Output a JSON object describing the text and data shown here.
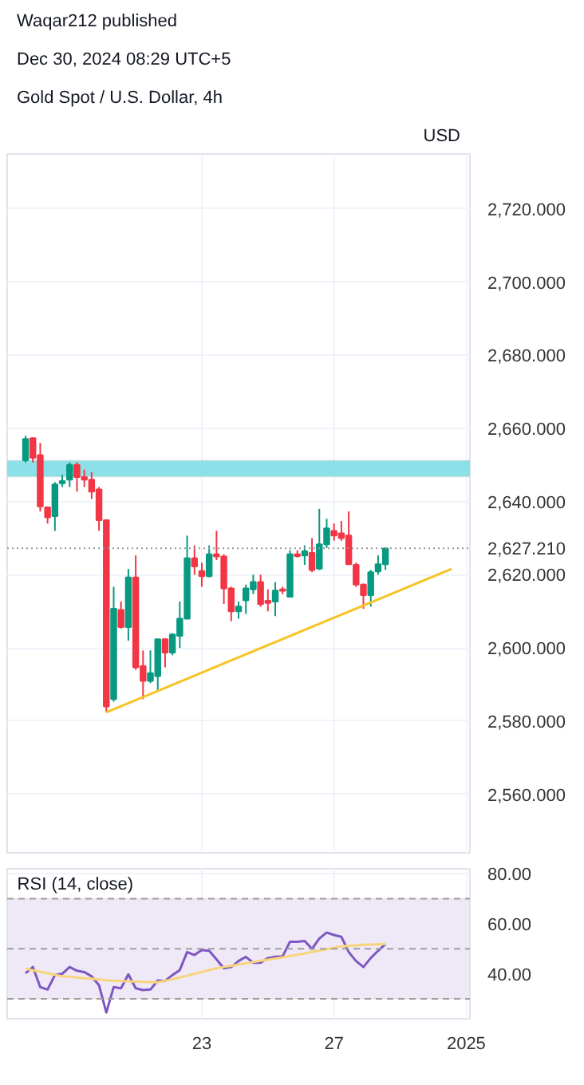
{
  "chart_data": [
    {
      "type": "candlestick",
      "title": "Gold Spot / U.S. Dollar, 4h",
      "ylabel": "USD",
      "annotations": [
        "Waqar212 published",
        "Dec 30, 2024 08:29 UTC+5"
      ],
      "categories": [
        null,
        null,
        null,
        null,
        null,
        null,
        null,
        null,
        null,
        null,
        null,
        null,
        null,
        null,
        null,
        null,
        null,
        null,
        null,
        null,
        null,
        null,
        null,
        null,
        null,
        null,
        "23",
        null,
        null,
        null,
        null,
        null,
        null,
        null,
        null,
        null,
        null,
        null,
        null,
        null,
        null,
        null,
        null,
        null,
        "27",
        null,
        null,
        null,
        null,
        null,
        null,
        null,
        null,
        null,
        null,
        null,
        null,
        null,
        null,
        null,
        null,
        null,
        "2025"
      ],
      "ohlc": [
        null,
        null,
        [
          2651.3,
          2658,
          2650.7,
          2657.1
        ],
        [
          2657.3,
          2657.6,
          2650.7,
          2652
        ],
        [
          2652.7,
          2656,
          2637.3,
          2638.7
        ],
        [
          2638.4,
          2638.7,
          2634,
          2635.7
        ],
        [
          2636,
          2645.3,
          2632,
          2644.7
        ],
        [
          2645,
          2647.3,
          2644,
          2645.6
        ],
        [
          2646,
          2650.7,
          2644,
          2650
        ],
        [
          2650,
          2650.7,
          2642.7,
          2646.7
        ],
        [
          2646.7,
          2648.7,
          2644,
          2646
        ],
        [
          2646,
          2648,
          2640.7,
          2642.7
        ],
        [
          2643.3,
          2644,
          2632,
          2634.9
        ],
        [
          2634.9,
          2635,
          2582.4,
          2584
        ],
        [
          2586,
          2616.7,
          2585.3,
          2610.7
        ],
        [
          2610.4,
          2612.7,
          2605.3,
          2605.7
        ],
        [
          2605.7,
          2621.6,
          2602,
          2619.3
        ],
        [
          2619.3,
          2625.3,
          2594,
          2594.7
        ],
        [
          2595,
          2599.3,
          2586,
          2591
        ],
        [
          2591,
          2599.3,
          2590.4,
          2593.1
        ],
        [
          2592.3,
          2602.4,
          2588.3,
          2602.4
        ],
        [
          2602.4,
          2602.7,
          2594.7,
          2598.7
        ],
        [
          2598.7,
          2604,
          2598,
          2603.7
        ],
        [
          2603.3,
          2612.7,
          2600,
          2608
        ],
        [
          2608,
          2630.7,
          2608,
          2624.5
        ],
        [
          2624.5,
          2628,
          2620,
          2622.3
        ],
        [
          2621,
          2623.3,
          2616.7,
          2619.6
        ],
        [
          2619.6,
          2628,
          2619.3,
          2625.6
        ],
        [
          2625.6,
          2632,
          2624,
          2625
        ],
        [
          2625,
          2625.6,
          2612,
          2616.3
        ],
        [
          2616.3,
          2616.7,
          2607.3,
          2610
        ],
        [
          2610,
          2612.7,
          2608,
          2611.3
        ],
        [
          2613,
          2617.3,
          2609.3,
          2616.3
        ],
        [
          2616,
          2620,
          2614.7,
          2618
        ],
        [
          2618,
          2620,
          2611.3,
          2612
        ],
        [
          2612.9,
          2616,
          2610,
          2612.3
        ],
        [
          2612.7,
          2618,
          2608.7,
          2615.7
        ],
        [
          2616,
          2616.7,
          2614.7,
          2615.6
        ],
        [
          2614,
          2626.7,
          2614,
          2625.6
        ],
        [
          2625.6,
          2626.7,
          2624.7,
          2625.1
        ],
        [
          2625.3,
          2628,
          2622.7,
          2626.4
        ],
        [
          2626,
          2630,
          2620.7,
          2621.3
        ],
        [
          2621.7,
          2638,
          2621.3,
          2628.3
        ],
        [
          2628.3,
          2635.3,
          2627.3,
          2632.7
        ],
        [
          2632,
          2634,
          2629.3,
          2630.7
        ],
        [
          2631.3,
          2634.7,
          2629.3,
          2630
        ],
        [
          2630.7,
          2637.3,
          2622.7,
          2622.9
        ],
        [
          2622.7,
          2623.3,
          2616.7,
          2617.3
        ],
        [
          2617.3,
          2617.6,
          2610.7,
          2614.4
        ],
        [
          2614.4,
          2621.3,
          2611.3,
          2620.7
        ],
        [
          2620.9,
          2625.3,
          2620,
          2622.9
        ],
        [
          2622.9,
          2627.5,
          2621.3,
          2627.2
        ],
        null,
        null,
        null,
        null,
        null,
        null,
        null,
        null,
        null,
        null,
        null
      ],
      "colors": [
        null,
        null,
        "#089981",
        "#f23645",
        "#f23645",
        "#f23645",
        "#089981",
        "#089981",
        "#089981",
        "#f23645",
        "#f23645",
        "#f23645",
        "#f23645",
        "#f23645",
        "#089981",
        "#f23645",
        "#089981",
        "#f23645",
        "#f23645",
        "#089981",
        "#089981",
        "#f23645",
        "#089981",
        "#089981",
        "#089981",
        "#f23645",
        "#f23645",
        "#089981",
        "#f23645",
        "#f23645",
        "#f23645",
        "#089981",
        "#089981",
        "#089981",
        "#f23645",
        "#f23645",
        "#089981",
        "#f23645",
        "#089981",
        "#f23645",
        "#089981",
        "#f23645",
        "#089981",
        "#089981",
        "#f23645",
        "#f23645",
        "#f23645",
        "#f23645",
        "#f23645",
        "#089981",
        "#089981",
        "#089981",
        null,
        null,
        null,
        null,
        null,
        null,
        null,
        null,
        null,
        null,
        null
      ],
      "series": [
        {
          "type": "line",
          "color": "#f7c325",
          "values": [
            null,
            null,
            null,
            null,
            null,
            null,
            null,
            null,
            null,
            null,
            null,
            null,
            null,
            2582.4,
            null,
            null,
            null,
            null,
            null,
            null,
            null,
            null,
            null,
            null,
            null,
            null,
            null,
            null,
            null,
            null,
            null,
            null,
            null,
            null,
            null,
            null,
            null,
            null,
            null,
            null,
            null,
            null,
            null,
            null,
            null,
            null,
            null,
            null,
            null,
            null,
            null,
            null,
            null,
            null,
            null,
            null,
            null,
            null,
            null,
            null,
            2621.6,
            null,
            null
          ]
        }
      ],
      "bands": [
        {
          "axis": "y",
          "from": 2646.8,
          "to": 2651.2,
          "color": "#7fdde4"
        }
      ],
      "ref_lines": [
        {
          "axis": "y",
          "value": 2627.21,
          "label": "2,627.210",
          "color": "#9598a1",
          "line_style": "dotted"
        }
      ],
      "ylim": [
        2544,
        2735
      ],
      "yticks": [
        {
          "value": 2560,
          "label": "2,560.000"
        },
        {
          "value": 2580,
          "label": "2,580.000"
        },
        {
          "value": 2600,
          "label": "2,600.000"
        },
        {
          "value": 2620,
          "label": "2,620.000"
        },
        {
          "value": 2640,
          "label": "2,640.000"
        },
        {
          "value": 2660,
          "label": "2,660.000"
        },
        {
          "value": 2680,
          "label": "2,680.000"
        },
        {
          "value": 2700,
          "label": "2,700.000"
        },
        {
          "value": 2720,
          "label": "2,720.000"
        }
      ],
      "grid": true,
      "tick_labels": "y"
    },
    {
      "type": "line",
      "title": "RSI (14, close)",
      "categories": [
        null,
        null,
        null,
        null,
        null,
        null,
        null,
        null,
        null,
        null,
        null,
        null,
        null,
        null,
        null,
        null,
        null,
        null,
        null,
        null,
        null,
        null,
        null,
        null,
        null,
        null,
        "23",
        null,
        null,
        null,
        null,
        null,
        null,
        null,
        null,
        null,
        null,
        null,
        null,
        null,
        null,
        null,
        null,
        null,
        "27",
        null,
        null,
        null,
        null,
        null,
        null,
        null,
        null,
        null,
        null,
        null,
        null,
        null,
        null,
        null,
        null,
        null,
        "2025"
      ],
      "series": [
        {
          "color": "#7e57c2",
          "values": [
            null,
            null,
            40.2,
            42.7,
            34.7,
            33.7,
            39.5,
            40,
            42.7,
            41.2,
            40.7,
            39,
            35.4,
            24.5,
            34.7,
            34.2,
            39.8,
            34.2,
            33.5,
            33.7,
            37.3,
            37.1,
            39.5,
            41.5,
            48.7,
            47.5,
            49.5,
            49.2,
            45.8,
            42.2,
            42.7,
            45.1,
            46.8,
            44.4,
            44.4,
            46.3,
            46.8,
            47,
            52.8,
            52.8,
            53.1,
            50,
            54.1,
            56.5,
            55.5,
            54.8,
            48.7,
            45.1,
            42.7,
            46.3,
            49.2,
            51.9,
            null,
            null,
            null,
            null,
            null,
            null,
            null,
            null,
            null,
            null,
            null
          ]
        },
        {
          "color": "#f7d57a",
          "values": [
            null,
            null,
            42,
            41.4,
            40.8,
            40.2,
            39.6,
            39,
            38.8,
            38.5,
            38.2,
            38,
            37.7,
            37.4,
            37.2,
            37.1,
            37,
            36.9,
            36.8,
            36.7,
            36.6,
            37.2,
            37.8,
            38.5,
            39.2,
            40,
            40.7,
            41.5,
            42.2,
            42.7,
            43.2,
            43.7,
            44.2,
            44.7,
            45.2,
            45.6,
            46.1,
            46.6,
            47.1,
            47.6,
            48.1,
            48.7,
            49.3,
            49.8,
            50.4,
            51,
            51.2,
            51.4,
            51.6,
            51.7,
            51.8,
            51.9,
            null,
            null,
            null,
            null,
            null,
            null,
            null,
            null,
            null,
            null,
            null
          ]
        }
      ],
      "bands": [
        {
          "axis": "y",
          "from": 30,
          "to": 70,
          "color": "#ede7f6"
        }
      ],
      "ref_lines": [
        {
          "axis": "y",
          "value": 70,
          "color": "#9e9e9e",
          "line_style": "dashed"
        },
        {
          "axis": "y",
          "value": 50,
          "color": "#9e9e9e",
          "line_style": "dashed"
        },
        {
          "axis": "y",
          "value": 30,
          "color": "#9e9e9e",
          "line_style": "dashed"
        }
      ],
      "ylim": [
        22,
        82
      ],
      "yticks": [
        {
          "value": 40,
          "label": "40.00"
        },
        {
          "value": 60,
          "label": "60.00"
        },
        {
          "value": 80,
          "label": "80.00"
        }
      ],
      "grid": true
    }
  ]
}
